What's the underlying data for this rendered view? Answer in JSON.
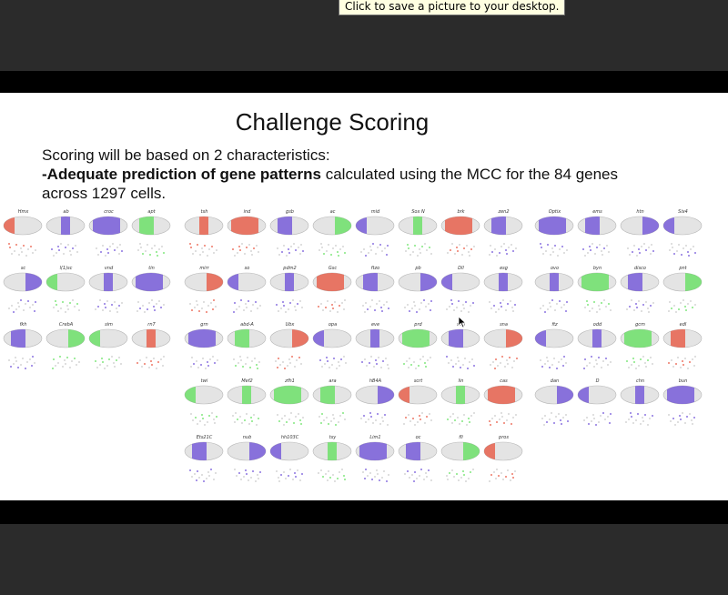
{
  "tooltip": {
    "text": "Click to save a picture to your desktop."
  },
  "slide": {
    "title": "Challenge Scoring",
    "line1": "Scoring will be based on 2 characteristics:",
    "line2_bold": "-Adequate prediction of gene patterns",
    "line2_rest": " calculated using the MCC for the 84 genes",
    "line3": "across 1297 cells."
  },
  "colors": {
    "red": "#e8503a",
    "blue": "#6a4bd8",
    "green": "#5ee05a",
    "embryo": "#e4e4e4",
    "slide_bg": "#ffffff",
    "band": "#000000",
    "chrome": "#2b2b2b"
  },
  "panels": [
    {
      "genes": [
        {
          "name": "Hmx",
          "color": "red"
        },
        {
          "name": "ab",
          "color": "blue"
        },
        {
          "name": "croc",
          "color": "blue"
        },
        {
          "name": "apt",
          "color": "green"
        },
        {
          "name": "sc",
          "color": "blue"
        },
        {
          "name": "l(1)sc",
          "color": "green"
        },
        {
          "name": "vnd",
          "color": "blue"
        },
        {
          "name": "tin",
          "color": "blue"
        },
        {
          "name": "fkh",
          "color": "blue"
        },
        {
          "name": "CrebA",
          "color": "green"
        },
        {
          "name": "sim",
          "color": "green"
        },
        {
          "name": "rn7",
          "color": "red"
        }
      ]
    },
    {
      "genes": [
        {
          "name": "tsh",
          "color": "red"
        },
        {
          "name": "ind",
          "color": "red"
        },
        {
          "name": "gsb",
          "color": "blue"
        },
        {
          "name": "ac",
          "color": "green"
        },
        {
          "name": "mid",
          "color": "blue"
        },
        {
          "name": "Sox N",
          "color": "green"
        },
        {
          "name": "brk",
          "color": "red"
        },
        {
          "name": "zen2",
          "color": "blue"
        },
        {
          "name": "mirr",
          "color": "red"
        },
        {
          "name": "so",
          "color": "blue"
        },
        {
          "name": "pdm2",
          "color": "blue"
        },
        {
          "name": "Gsc",
          "color": "red"
        },
        {
          "name": "ftzo",
          "color": "blue"
        },
        {
          "name": "pb",
          "color": "blue"
        },
        {
          "name": "Dll",
          "color": "blue"
        },
        {
          "name": "esg",
          "color": "blue"
        },
        {
          "name": "grn",
          "color": "blue"
        },
        {
          "name": "abd-A",
          "color": "green"
        },
        {
          "name": "Ubx",
          "color": "red"
        },
        {
          "name": "opa",
          "color": "blue"
        },
        {
          "name": "eve",
          "color": "blue"
        },
        {
          "name": "prd",
          "color": "green"
        },
        {
          "name": "shn",
          "color": "blue"
        },
        {
          "name": "sna",
          "color": "red"
        },
        {
          "name": "twi",
          "color": "green"
        },
        {
          "name": "Mef2",
          "color": "green"
        },
        {
          "name": "zfh1",
          "color": "green"
        },
        {
          "name": "ara",
          "color": "green"
        },
        {
          "name": "hB4A",
          "color": "blue"
        },
        {
          "name": "scrt",
          "color": "red"
        },
        {
          "name": "lin",
          "color": "green"
        },
        {
          "name": "cas",
          "color": "red"
        },
        {
          "name": "Ets21C",
          "color": "blue"
        },
        {
          "name": "nub",
          "color": "blue"
        },
        {
          "name": "hh103C",
          "color": "blue"
        },
        {
          "name": "tsy",
          "color": "green"
        },
        {
          "name": "Lim1",
          "color": "blue"
        },
        {
          "name": "oc",
          "color": "blue"
        },
        {
          "name": "fli",
          "color": "green"
        },
        {
          "name": "pros",
          "color": "red"
        }
      ]
    },
    {
      "genes": [
        {
          "name": "Optix",
          "color": "blue"
        },
        {
          "name": "ems",
          "color": "blue"
        },
        {
          "name": "htn",
          "color": "blue"
        },
        {
          "name": "Six4",
          "color": "blue"
        },
        {
          "name": "ovo",
          "color": "blue"
        },
        {
          "name": "byn",
          "color": "green"
        },
        {
          "name": "disco",
          "color": "blue"
        },
        {
          "name": "pnt",
          "color": "green"
        },
        {
          "name": "ftz",
          "color": "blue"
        },
        {
          "name": "odd",
          "color": "blue"
        },
        {
          "name": "gcm",
          "color": "green"
        },
        {
          "name": "edl",
          "color": "red"
        },
        {
          "name": "dan",
          "color": "blue"
        },
        {
          "name": "D",
          "color": "blue"
        },
        {
          "name": "chn",
          "color": "blue"
        },
        {
          "name": "bun",
          "color": "blue"
        }
      ]
    }
  ]
}
